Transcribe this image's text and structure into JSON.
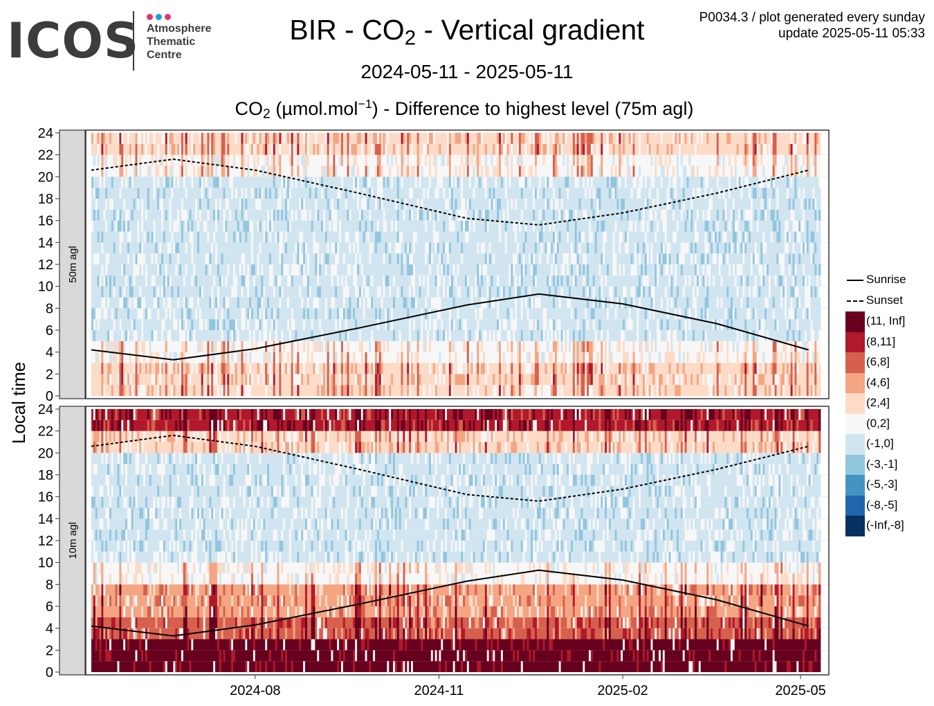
{
  "header": {
    "logo": {
      "word": "ICOS",
      "lines": [
        "Atmosphere",
        "Thematic",
        "Centre"
      ],
      "dot_colors": [
        "#e8336f",
        "#1e9be0",
        "#e8336f"
      ]
    },
    "title_pre": "BIR - CO",
    "title_sub": "2",
    "title_post": " - Vertical gradient",
    "subtitle": "2024-05-11 - 2025-05-11",
    "meta_line1": "P0034.3 / plot generated every sunday",
    "meta_line2": "update  2025-05-11 05:33",
    "unit_pre": "CO",
    "unit_sub": "2",
    "unit_mid": " (µmol.mol",
    "unit_sup": "−1",
    "unit_post": ") - Difference to highest level (75m agl)"
  },
  "legend": {
    "sunrise_label": "Sunrise",
    "sunset_label": "Sunset",
    "bins": [
      {
        "label": "(11, Inf]",
        "color": "#67001f"
      },
      {
        "label": "(8,11]",
        "color": "#b2182b"
      },
      {
        "label": "(6,8]",
        "color": "#d6604d"
      },
      {
        "label": "(4,6]",
        "color": "#f4a582"
      },
      {
        "label": "(2,4]",
        "color": "#fddbc7"
      },
      {
        "label": "(0,2]",
        "color": "#f7f7f7"
      },
      {
        "label": "(-1,0]",
        "color": "#d1e5f0"
      },
      {
        "label": "(-3,-1]",
        "color": "#92c5de"
      },
      {
        "label": "(-5,-3]",
        "color": "#4393c3"
      },
      {
        "label": "(-8,-5]",
        "color": "#2166ac"
      },
      {
        "label": "(-Inf,-8]",
        "color": "#053061"
      }
    ]
  },
  "chart_data": {
    "type": "heatmap",
    "ylabel": "Local time",
    "x_range": [
      "2024-05-11",
      "2025-05-11"
    ],
    "x_ticks": [
      "2024-08",
      "2024-11",
      "2025-02",
      "2025-05"
    ],
    "y_range": [
      0,
      24
    ],
    "y_ticks": [
      0,
      2,
      4,
      6,
      8,
      10,
      12,
      14,
      16,
      18,
      20,
      22,
      24
    ],
    "panels": [
      {
        "name": "50m agl",
        "rows_description": "hour-of-day bands",
        "band_hours": [
          0,
          3,
          5,
          8,
          10,
          17,
          20,
          22,
          24
        ],
        "band_typical_bins": [
          "(2,4]",
          "(0,2]",
          "(-1,0]",
          "(-1,0]",
          "(-1,0]",
          "(-1,0]",
          "(0,2]",
          "(2,4]"
        ]
      },
      {
        "name": "10m agl",
        "band_hours": [
          0,
          3,
          5,
          8,
          10,
          17,
          20,
          22,
          24
        ],
        "band_typical_bins": [
          "(11, Inf]",
          "(6,8]",
          "(4,6]",
          "(0,2]",
          "(-1,0]",
          "(-1,0]",
          "(2,4]",
          "(8,11]"
        ]
      }
    ],
    "sunrise": [
      {
        "date": "2024-05-11",
        "hour": 4.2
      },
      {
        "date": "2024-06-21",
        "hour": 3.3
      },
      {
        "date": "2024-08-01",
        "hour": 4.3
      },
      {
        "date": "2024-09-22",
        "hour": 6.2
      },
      {
        "date": "2024-11-15",
        "hour": 8.3
      },
      {
        "date": "2024-12-21",
        "hour": 9.3
      },
      {
        "date": "2025-02-01",
        "hour": 8.4
      },
      {
        "date": "2025-03-20",
        "hour": 6.6
      },
      {
        "date": "2025-05-05",
        "hour": 4.2
      }
    ],
    "sunset": [
      {
        "date": "2024-05-11",
        "hour": 20.6
      },
      {
        "date": "2024-06-21",
        "hour": 21.6
      },
      {
        "date": "2024-08-01",
        "hour": 20.6
      },
      {
        "date": "2024-09-22",
        "hour": 18.5
      },
      {
        "date": "2024-11-15",
        "hour": 16.2
      },
      {
        "date": "2024-12-21",
        "hour": 15.6
      },
      {
        "date": "2025-02-01",
        "hour": 16.7
      },
      {
        "date": "2025-03-20",
        "hour": 18.5
      },
      {
        "date": "2025-05-05",
        "hour": 20.6
      }
    ]
  }
}
